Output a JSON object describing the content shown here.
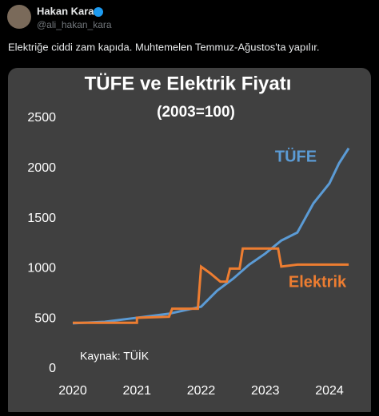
{
  "tweet": {
    "name": "Hakan Kara",
    "handle": "@ali_hakan_kara",
    "text": "Elektriğe ciddi zam kapıda. Muhtemelen Temmuz-Ağustos'ta yapılır."
  },
  "chart_data": {
    "type": "line",
    "title": "TÜFE ve Elektrik Fiyatı",
    "subtitle": "(2003=100)",
    "annotation": "Kaynak: TÜİK",
    "xlim": [
      2020,
      2024
    ],
    "xticks": [
      2020,
      2021,
      2022,
      2023,
      2024
    ],
    "ylim": [
      0,
      2500
    ],
    "yticks": [
      0,
      500,
      1000,
      1500,
      2000,
      2500
    ],
    "grid": false,
    "series": [
      {
        "name": "TÜFE",
        "color": "#5b9bd5",
        "x": [
          2020.0,
          2020.5,
          2021.0,
          2021.5,
          2022.0,
          2022.25,
          2022.5,
          2022.75,
          2023.0,
          2023.25,
          2023.5,
          2023.75,
          2024.0,
          2024.15,
          2024.3
        ],
        "values": [
          455,
          470,
          510,
          550,
          620,
          780,
          900,
          1040,
          1150,
          1280,
          1360,
          1650,
          1850,
          2050,
          2200
        ]
      },
      {
        "name": "Elektrik",
        "color": "#ed7d31",
        "x": [
          2020.0,
          2021.0,
          2021.0,
          2021.5,
          2021.55,
          2021.95,
          2022.0,
          2022.15,
          2022.3,
          2022.4,
          2022.45,
          2022.6,
          2022.65,
          2023.2,
          2023.25,
          2023.5,
          2024.3
        ],
        "values": [
          460,
          460,
          510,
          520,
          600,
          600,
          1020,
          950,
          870,
          870,
          1000,
          1000,
          1200,
          1200,
          1020,
          1040,
          1040
        ]
      }
    ]
  }
}
